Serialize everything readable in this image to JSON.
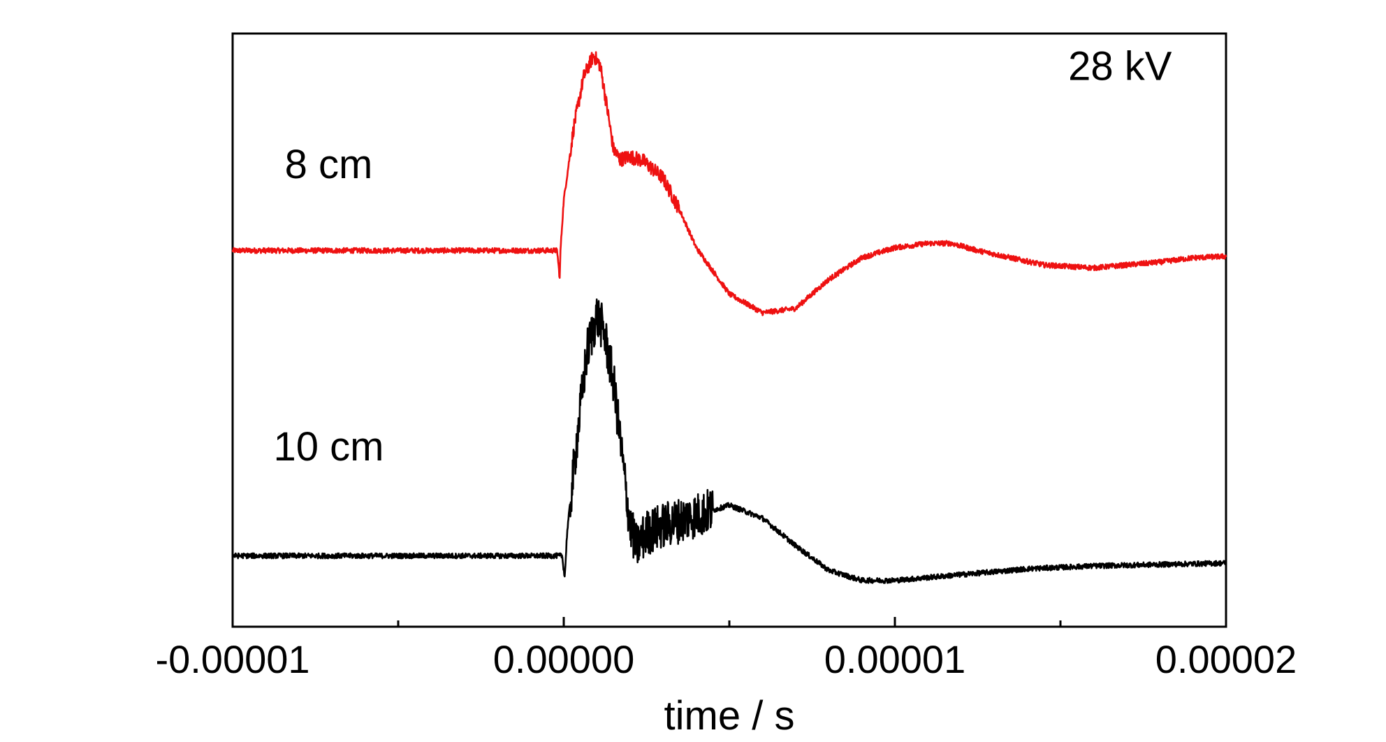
{
  "chart_data": {
    "type": "line",
    "title": "",
    "xlabel": "time / s",
    "ylabel": "",
    "xlim": [
      -1e-05,
      2e-05
    ],
    "ylim": [
      -1.0,
      3.1
    ],
    "grid": false,
    "legend": "none",
    "x_ticks": [
      -1e-05,
      0.0,
      1e-05,
      2e-05
    ],
    "x_tick_labels": [
      "-0.00001",
      "0.00000",
      "0.00001",
      "0.00002"
    ],
    "x_minor_ticks": [
      -5e-06,
      5e-06,
      1.5e-05
    ],
    "annotations": [
      {
        "text": "28 kV",
        "x": 1.68e-05,
        "y": 2.78
      },
      {
        "text": "8 cm",
        "x": -7.1e-06,
        "y": 2.1
      },
      {
        "text": "10 cm",
        "x": -7.1e-06,
        "y": 0.15
      }
    ],
    "series": [
      {
        "color": "#ee1111",
        "x": [
          -1e-05,
          -8e-06,
          -6e-06,
          -4e-06,
          -2e-06,
          -2e-07,
          -1.2e-07,
          -1e-07,
          0.0,
          3e-07,
          6e-07,
          9e-07,
          1.1e-06,
          1.3e-06,
          1.5e-06,
          1.7e-06,
          2e-06,
          2.4e-06,
          3e-06,
          3.5e-06,
          4e-06,
          5e-06,
          6e-06,
          7e-06,
          8e-06,
          9e-06,
          1e-05,
          1.1e-05,
          1.17e-05,
          1.25e-05,
          1.35e-05,
          1.45e-05,
          1.6e-05,
          1.7e-05,
          1.8e-05,
          1.9e-05,
          2e-05
        ],
        "y": [
          1.6,
          1.6,
          1.6,
          1.6,
          1.6,
          1.6,
          1.4,
          1.6,
          1.95,
          2.45,
          2.8,
          2.95,
          2.88,
          2.6,
          2.3,
          2.23,
          2.25,
          2.22,
          2.1,
          1.88,
          1.62,
          1.3,
          1.17,
          1.2,
          1.4,
          1.55,
          1.62,
          1.65,
          1.65,
          1.6,
          1.55,
          1.5,
          1.48,
          1.5,
          1.52,
          1.55,
          1.56
        ]
      },
      {
        "color": "#000000",
        "x": [
          -1e-05,
          -8e-06,
          -6e-06,
          -4e-06,
          -2e-06,
          -5e-08,
          3e-08,
          1e-07,
          4e-07,
          7e-07,
          1e-06,
          1.2e-06,
          1.5e-06,
          1.8e-06,
          2e-06,
          2.2e-06,
          2.5e-06,
          3e-06,
          4e-06,
          5e-06,
          6e-06,
          7e-06,
          8e-06,
          9e-06,
          1e-05,
          1.1e-05,
          1.2e-05,
          1.4e-05,
          1.6e-05,
          1.8e-05,
          2e-05
        ],
        "y": [
          -0.51,
          -0.51,
          -0.51,
          -0.51,
          -0.51,
          -0.51,
          -0.66,
          -0.35,
          0.3,
          0.9,
          1.15,
          1.05,
          0.7,
          0.1,
          -0.3,
          -0.45,
          -0.35,
          -0.3,
          -0.23,
          -0.16,
          -0.25,
          -0.44,
          -0.61,
          -0.68,
          -0.68,
          -0.66,
          -0.64,
          -0.6,
          -0.58,
          -0.57,
          -0.56
        ]
      }
    ]
  }
}
